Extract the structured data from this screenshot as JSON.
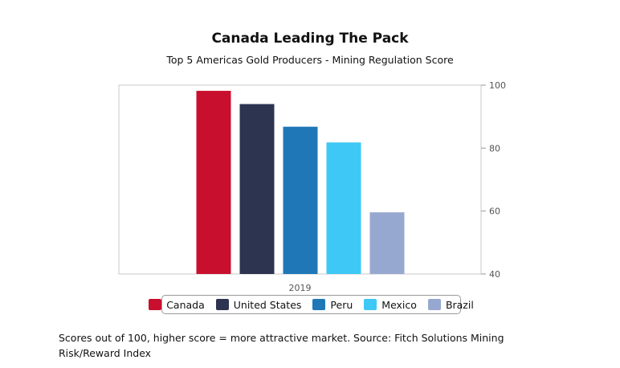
{
  "chart_data": {
    "type": "bar",
    "title": "Canada Leading The Pack",
    "subtitle": "Top 5 Americas Gold Producers - Mining Regulation Score",
    "categories": [
      "2019"
    ],
    "series": [
      {
        "name": "Canada",
        "values": [
          98.2
        ],
        "color": "#c8102e"
      },
      {
        "name": "United States",
        "values": [
          94.0
        ],
        "color": "#2d3450"
      },
      {
        "name": "Peru",
        "values": [
          86.8
        ],
        "color": "#1f77b8"
      },
      {
        "name": "Mexico",
        "values": [
          81.8
        ],
        "color": "#3ec8f5"
      },
      {
        "name": "Brazil",
        "values": [
          59.6
        ],
        "color": "#97a8d0"
      }
    ],
    "ylim": [
      40,
      100
    ],
    "yticks": [
      40,
      60,
      80,
      100
    ],
    "xlabel": "",
    "ylabel": "",
    "axis_side": "right",
    "legend_position": "bottom"
  },
  "footnote": "Scores out of 100, higher score = more attractive market. Source: Fitch Solutions Mining Risk/Reward Index"
}
